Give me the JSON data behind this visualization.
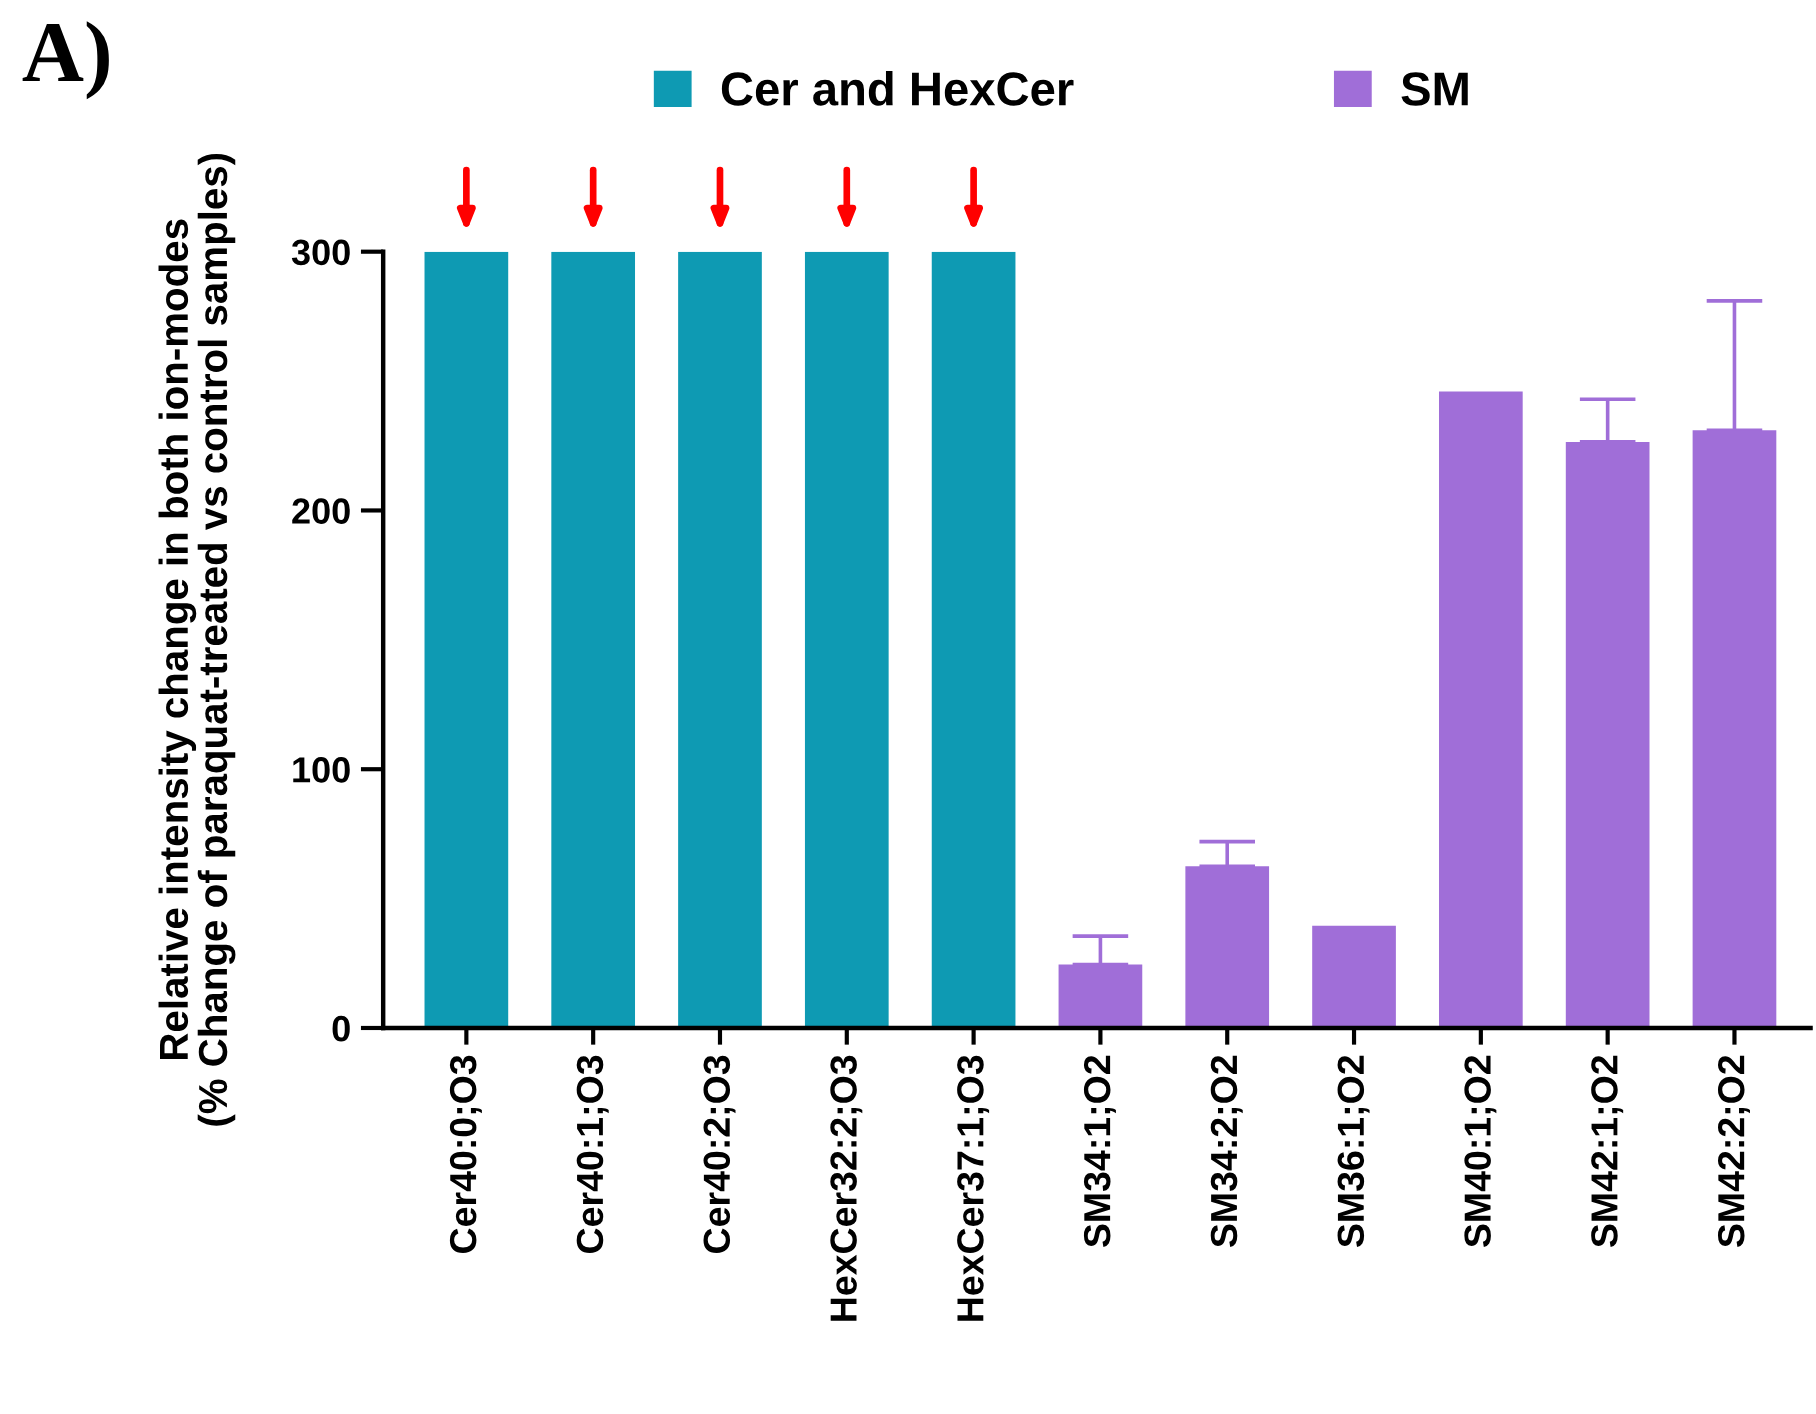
{
  "chart_data": {
    "type": "bar",
    "title": "A)",
    "ylabel": "Relative intensity change in both ion-modes\n(% Change of paraquat-treated vs control samples)",
    "categories": [
      "Cer40:0;O3",
      "Cer40:1;O3",
      "Cer40:2;O3",
      "HexCer32:2;O3",
      "HexCer37:1;O3",
      "SM34:1;O2",
      "SM34:2;O2",
      "SM36:1;O2",
      "SM40:1;O2",
      "SM42:1;O2",
      "SM42:2;O2"
    ],
    "series": [
      {
        "name": "Cer and HexCer",
        "color": "#0e9ab3",
        "values": [
          300,
          300,
          300,
          300,
          300,
          null,
          null,
          null,
          null,
          null,
          null
        ]
      },
      {
        "name": "SM",
        "color": "#a06ed8",
        "values": [
          null,
          null,
          null,
          null,
          null,
          24.5,
          62.5,
          39.5,
          246,
          226.5,
          231
        ],
        "errors": [
          null,
          null,
          null,
          null,
          null,
          [
            24.5,
            35.5
          ],
          [
            62.5,
            72
          ],
          null,
          null,
          [
            226.5,
            243
          ],
          [
            231,
            281
          ]
        ]
      }
    ],
    "ylim": [
      0,
      300
    ],
    "yticks": [
      0,
      100,
      200,
      300
    ],
    "grid": false,
    "legend": "top"
  }
}
